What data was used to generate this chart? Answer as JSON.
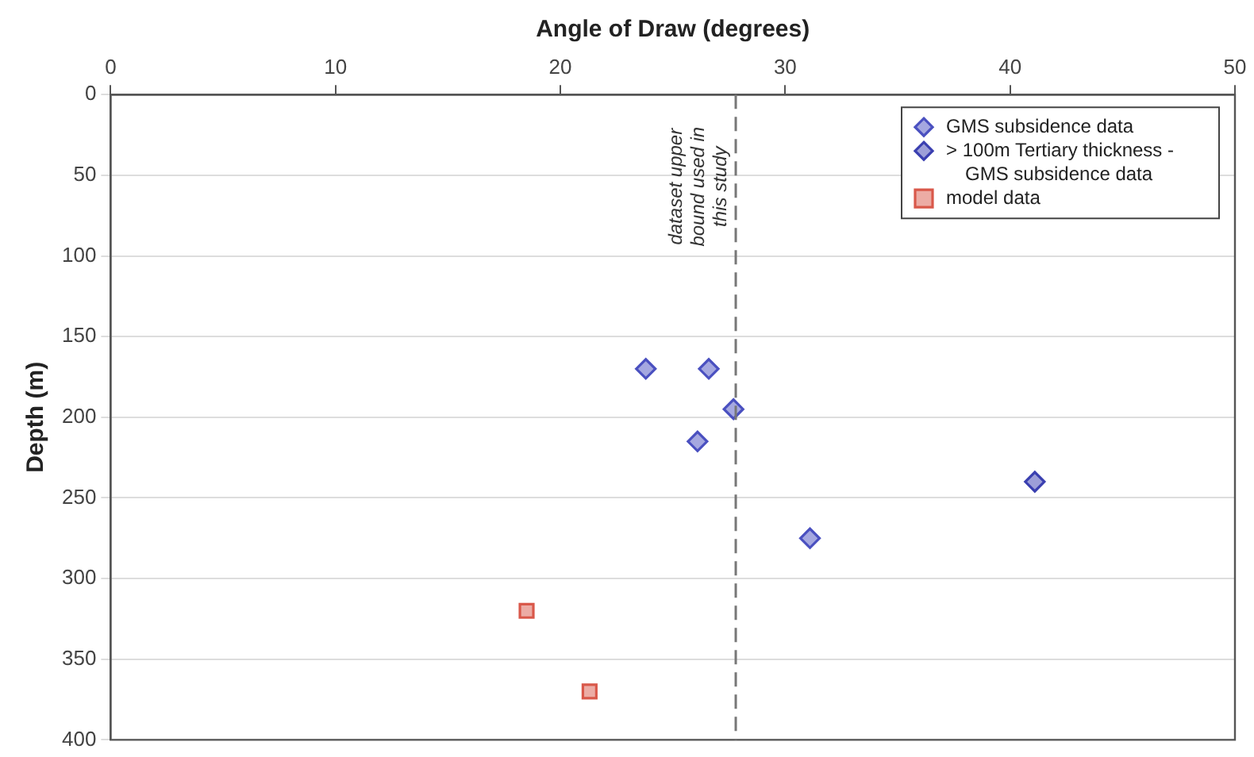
{
  "chart_data": {
    "type": "scatter",
    "xlabel": "Angle of Draw (degrees)",
    "ylabel": "Depth (m)",
    "xlim": [
      0,
      50
    ],
    "xticks": [
      0,
      10,
      20,
      30,
      40,
      50
    ],
    "ylim": [
      400,
      0
    ],
    "yticks": [
      0,
      50,
      100,
      150,
      200,
      250,
      300,
      350,
      400
    ],
    "grid": "y",
    "legend": "top right",
    "series": [
      {
        "name": "GMS subsidence data",
        "color": "#4a50c0",
        "marker": "diamond",
        "x": [
          23.8,
          26.6,
          27.7,
          26.1,
          31.1
        ],
        "values": [
          170,
          170,
          195,
          215,
          275
        ]
      },
      {
        "name": "> 100m Tertiary thickness - GMS subsidence data",
        "color": "#3a3fb0",
        "marker": "diamond",
        "x": [
          41.1
        ],
        "values": [
          240
        ]
      },
      {
        "name": "model data",
        "color": "#d9584a",
        "marker": "square",
        "x": [
          18.5,
          21.3
        ],
        "values": [
          320,
          370
        ]
      }
    ],
    "ref_lines": [
      {
        "axis": "x",
        "value": 27.8,
        "label": "dataset upper bound used in this study",
        "color": "#777777",
        "line_style": "dashed"
      }
    ]
  }
}
